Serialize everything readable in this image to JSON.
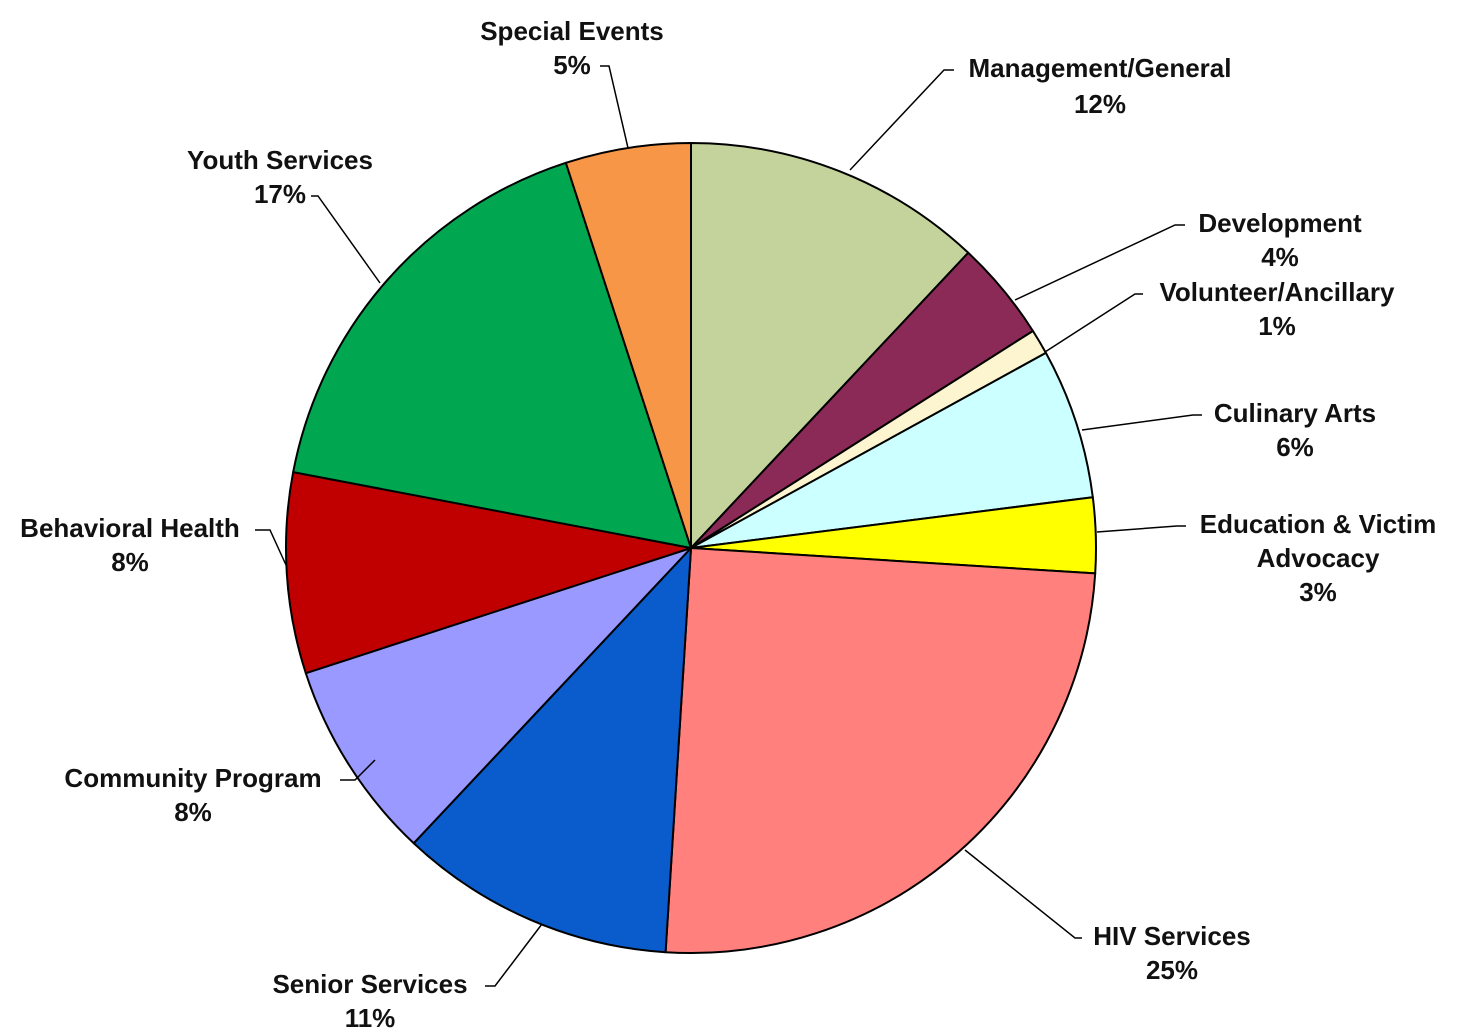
{
  "chart_data": {
    "type": "pie",
    "title": "",
    "start_angle_deg": 0,
    "direction": "clockwise",
    "slices": [
      {
        "label": "Management/General",
        "label_lines": [
          "Management/General"
        ],
        "value": 12,
        "display": "12%",
        "color": "#c4d39b"
      },
      {
        "label": "Development",
        "label_lines": [
          "Development"
        ],
        "value": 4,
        "display": "4%",
        "color": "#8b2a57"
      },
      {
        "label": "Volunteer/Ancillary",
        "label_lines": [
          "Volunteer/Ancillary"
        ],
        "value": 1,
        "display": "1%",
        "color": "#fdf5cf"
      },
      {
        "label": "Culinary Arts",
        "label_lines": [
          "Culinary Arts"
        ],
        "value": 6,
        "display": "6%",
        "color": "#ccffff"
      },
      {
        "label": "Education & Victim Advocacy",
        "label_lines": [
          "Education & Victim",
          "Advocacy"
        ],
        "value": 3,
        "display": "3%",
        "color": "#ffff00"
      },
      {
        "label": "HIV Services",
        "label_lines": [
          "HIV Services"
        ],
        "value": 25,
        "display": "25%",
        "color": "#ff807c"
      },
      {
        "label": "Senior Services",
        "label_lines": [
          "Senior Services"
        ],
        "value": 11,
        "display": "11%",
        "color": "#0a5ccc"
      },
      {
        "label": "Community Program",
        "label_lines": [
          "Community Program"
        ],
        "value": 8,
        "display": "8%",
        "color": "#9999ff"
      },
      {
        "label": "Behavioral Health",
        "label_lines": [
          "Behavioral Health"
        ],
        "value": 8,
        "display": "8%",
        "color": "#c00000"
      },
      {
        "label": "Youth Services",
        "label_lines": [
          "Youth Services"
        ],
        "value": 17,
        "display": "17%",
        "color": "#00a650"
      },
      {
        "label": "Special Events",
        "label_lines": [
          "Special Events"
        ],
        "value": 5,
        "display": "5%",
        "color": "#f79646"
      }
    ]
  }
}
